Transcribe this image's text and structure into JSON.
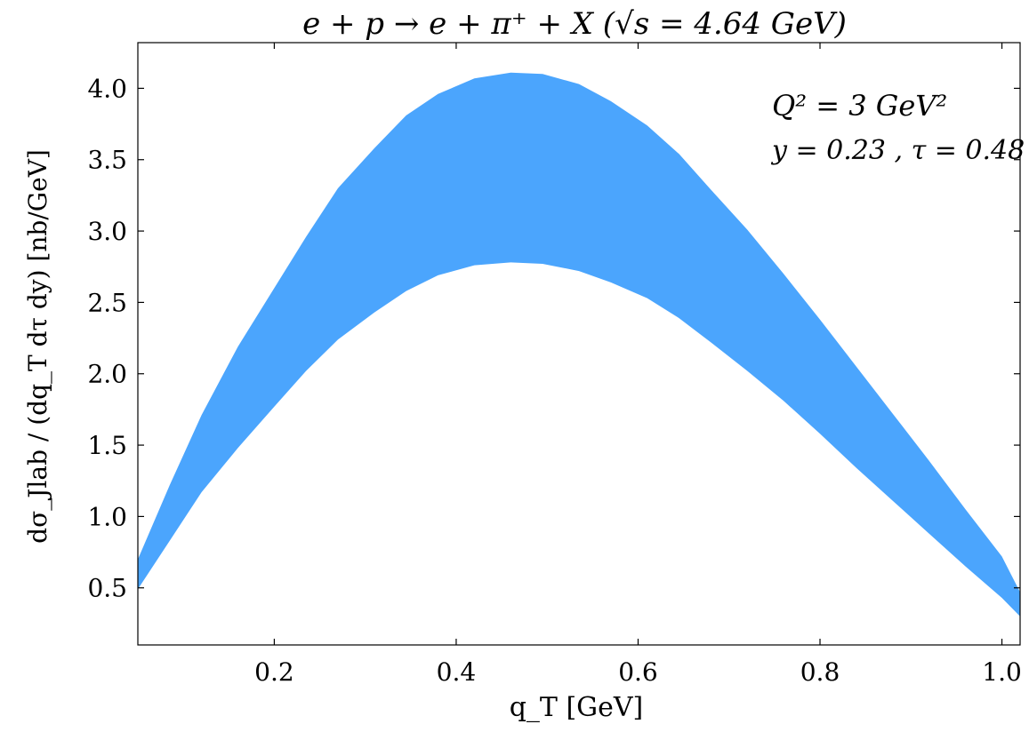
{
  "chart_data": {
    "type": "area",
    "title": "e + p → e + π⁺ + X (√s = 4.64 GeV)",
    "xlabel": "q_T [GeV]",
    "ylabel": "dσ_Jlab / (dq_T dτ dy) [nb/GeV]",
    "xlim": [
      0.05,
      1.02
    ],
    "ylim": [
      0.1,
      4.32
    ],
    "xticks": [
      0.2,
      0.4,
      0.6,
      0.8,
      1.0
    ],
    "xtick_labels": [
      "0.2",
      "0.4",
      "0.6",
      "0.8",
      "1.0"
    ],
    "yticks": [
      0.5,
      1.0,
      1.5,
      2.0,
      2.5,
      3.0,
      3.5,
      4.0
    ],
    "ytick_labels": [
      "0.5",
      "1.0",
      "1.5",
      "2.0",
      "2.5",
      "3.0",
      "3.5",
      "4.0"
    ],
    "grid": false,
    "annotations": [
      "Q² = 3 GeV²",
      "y = 0.23 , τ = 0.48"
    ],
    "series": [
      {
        "color": "#4ba5fd",
        "x": [
          0.05,
          0.085,
          0.12,
          0.16,
          0.2,
          0.235,
          0.27,
          0.31,
          0.345,
          0.38,
          0.42,
          0.46,
          0.495,
          0.535,
          0.57,
          0.61,
          0.645,
          0.68,
          0.72,
          0.76,
          0.8,
          0.84,
          0.88,
          0.92,
          0.96,
          1.0,
          1.02
        ],
        "lower": [
          0.49,
          0.83,
          1.17,
          1.48,
          1.77,
          2.02,
          2.24,
          2.43,
          2.58,
          2.69,
          2.76,
          2.78,
          2.77,
          2.72,
          2.64,
          2.53,
          2.39,
          2.22,
          2.02,
          1.81,
          1.58,
          1.34,
          1.11,
          0.88,
          0.65,
          0.43,
          0.3
        ],
        "upper": [
          0.7,
          1.22,
          1.71,
          2.19,
          2.6,
          2.96,
          3.3,
          3.58,
          3.81,
          3.96,
          4.07,
          4.11,
          4.1,
          4.03,
          3.91,
          3.74,
          3.54,
          3.29,
          3.01,
          2.7,
          2.38,
          2.05,
          1.72,
          1.39,
          1.05,
          0.72,
          0.47
        ]
      }
    ]
  }
}
